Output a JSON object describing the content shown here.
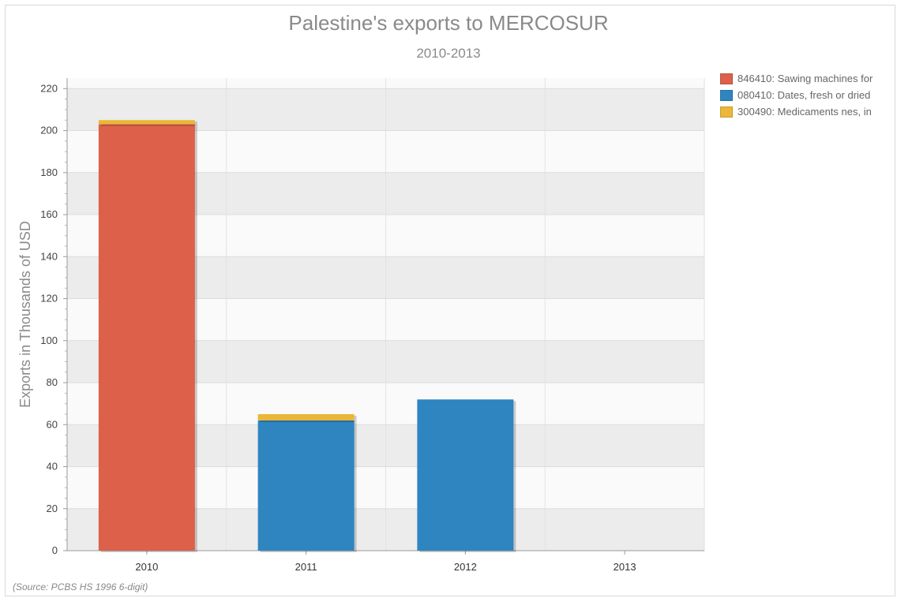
{
  "chart_data": {
    "type": "bar",
    "stacked": true,
    "title": "Palestine's exports to MERCOSUR",
    "subtitle": "2010-2013",
    "ylabel": "Exports in Thousands of USD",
    "xlabel": "",
    "categories": [
      "2010",
      "2011",
      "2012",
      "2013"
    ],
    "ylim": [
      0,
      225
    ],
    "yticks": [
      0,
      20,
      40,
      60,
      80,
      100,
      120,
      140,
      160,
      180,
      200,
      220
    ],
    "grid": true,
    "legend_position": "right",
    "series": [
      {
        "name": "846410: Sawing machines for",
        "color": "#dc604a",
        "values": [
          203,
          0,
          0,
          0
        ]
      },
      {
        "name": "080410: Dates, fresh or dried",
        "color": "#2e85c0",
        "values": [
          0,
          62,
          72,
          0
        ]
      },
      {
        "name": "300490: Medicaments nes, in",
        "color": "#eab738",
        "values": [
          2,
          3,
          0,
          0
        ]
      }
    ],
    "source": "(Source: PCBS HS 1996 6-digit)"
  }
}
